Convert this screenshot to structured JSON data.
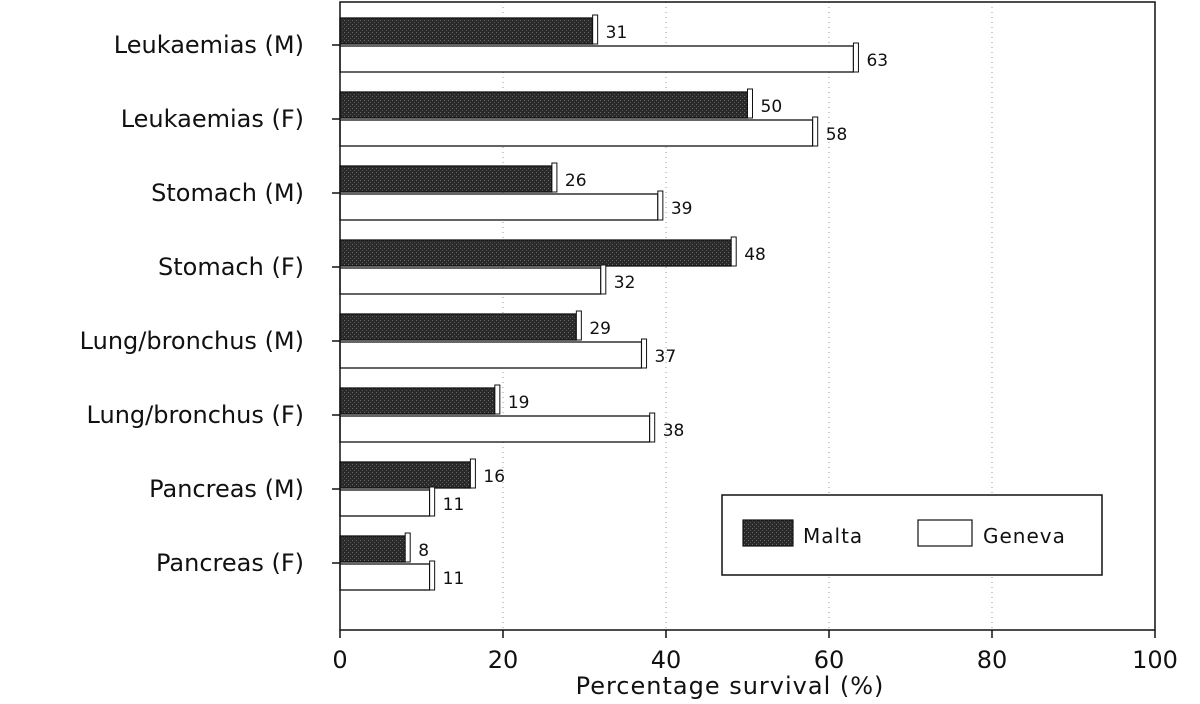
{
  "chart_data": {
    "type": "bar",
    "orientation": "horizontal",
    "title": "",
    "xlabel": "Percentage survival (%)",
    "ylabel": "",
    "xlim": [
      0,
      100
    ],
    "xticks": [
      0,
      20,
      40,
      60,
      80,
      100
    ],
    "grid": "vertical dotted",
    "legend_position": "bottom-right",
    "categories": [
      "Leukaemias (M)",
      "Leukaemias (F)",
      "Stomach (M)",
      "Stomach (F)",
      "Lung/bronchus (M)",
      "Lung/bronchus (F)",
      "Pancreas (M)",
      "Pancreas (F)"
    ],
    "series": [
      {
        "name": "Malta",
        "color": "#2a2a2a",
        "values": [
          31,
          50,
          26,
          48,
          29,
          19,
          16,
          8
        ]
      },
      {
        "name": "Geneva",
        "color": "#ffffff",
        "values": [
          63,
          58,
          39,
          32,
          37,
          38,
          11,
          11
        ]
      }
    ]
  }
}
